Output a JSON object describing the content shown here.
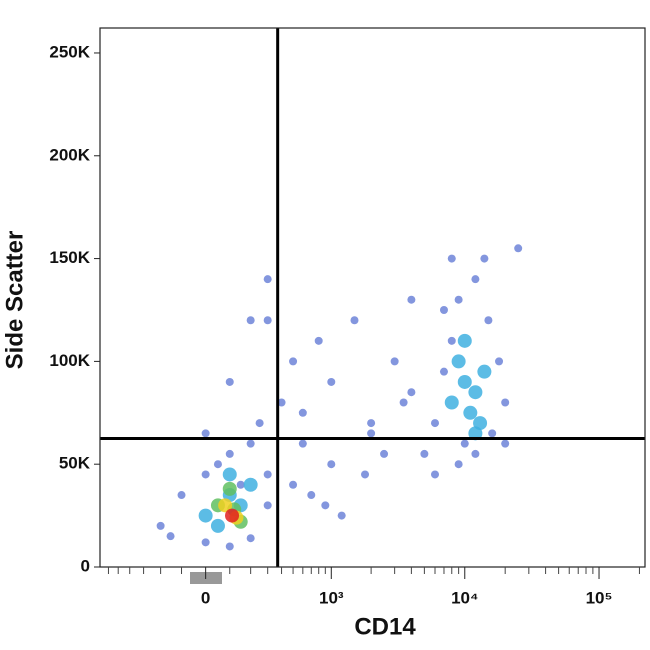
{
  "chart_data": {
    "type": "scatter",
    "xlabel": "CD14",
    "ylabel": "Side Scatter",
    "xscale": "arcsinh",
    "xlim": [
      -700,
      220000
    ],
    "xticks": [
      0,
      {
        "value": 1000,
        "label": "10³"
      },
      {
        "value": 10000,
        "label": "10⁴"
      },
      {
        "value": 100000,
        "label": "10⁵"
      }
    ],
    "xminorticks": [
      -600,
      -500,
      -400,
      -300,
      -200,
      -100,
      100,
      200,
      300,
      400,
      500,
      600,
      700,
      800,
      900,
      2000,
      3000,
      4000,
      5000,
      6000,
      7000,
      8000,
      9000,
      20000,
      30000,
      40000,
      50000,
      60000,
      70000,
      80000,
      90000,
      200000
    ],
    "ylim": [
      0,
      262144
    ],
    "yticks": [
      0,
      {
        "value": 50000,
        "label": "50K"
      },
      {
        "value": 100000,
        "label": "100K"
      },
      {
        "value": 150000,
        "label": "150K"
      },
      {
        "value": 200000,
        "label": "200K"
      },
      {
        "value": 250000,
        "label": "250K"
      }
    ],
    "x_gate": 370,
    "y_gate": 62500,
    "gate_color": "#000000",
    "series": [
      {
        "color": "#3050c8",
        "x": [
          -200,
          -100,
          0,
          50,
          100,
          150,
          200,
          250,
          300,
          -150,
          0,
          100,
          200,
          300,
          400,
          500,
          600,
          800,
          1000,
          1500,
          2000,
          3000,
          4000,
          500,
          700,
          900,
          1200,
          1800,
          2500,
          3500,
          300,
          200,
          100,
          0,
          5000,
          6000,
          7000,
          8000,
          9000,
          12000,
          15000,
          18000,
          20000,
          25000,
          6000,
          8000,
          14000,
          16000,
          20000,
          10000,
          12000,
          9000,
          7000,
          300,
          600,
          1000,
          2000,
          4000
        ],
        "values": [
          20000,
          35000,
          45000,
          50000,
          55000,
          40000,
          60000,
          70000,
          30000,
          15000,
          12000,
          10000,
          14000,
          45000,
          80000,
          100000,
          60000,
          110000,
          90000,
          120000,
          70000,
          100000,
          130000,
          40000,
          35000,
          30000,
          25000,
          45000,
          55000,
          80000,
          140000,
          120000,
          90000,
          65000,
          55000,
          70000,
          95000,
          110000,
          130000,
          140000,
          120000,
          100000,
          80000,
          155000,
          45000,
          150000,
          150000,
          65000,
          60000,
          60000,
          55000,
          50000,
          125000,
          120000,
          75000,
          50000,
          65000,
          85000
        ]
      },
      {
        "color": "#40b0e0",
        "x": [
          8000,
          10000,
          12000,
          14000,
          9000,
          11000,
          13000,
          10000,
          12000,
          50,
          100,
          150,
          200,
          0,
          100
        ],
        "values": [
          80000,
          90000,
          85000,
          95000,
          100000,
          75000,
          70000,
          110000,
          65000,
          20000,
          35000,
          30000,
          40000,
          25000,
          45000
        ]
      },
      {
        "color": "#60c060",
        "x": [
          50,
          100,
          150,
          120
        ],
        "values": [
          30000,
          38000,
          22000,
          28000
        ]
      },
      {
        "color": "#f0d020",
        "x": [
          80,
          130
        ],
        "values": [
          30000,
          24000
        ]
      },
      {
        "color": "#e02020",
        "x": [
          110
        ],
        "values": [
          25000
        ]
      }
    ]
  }
}
